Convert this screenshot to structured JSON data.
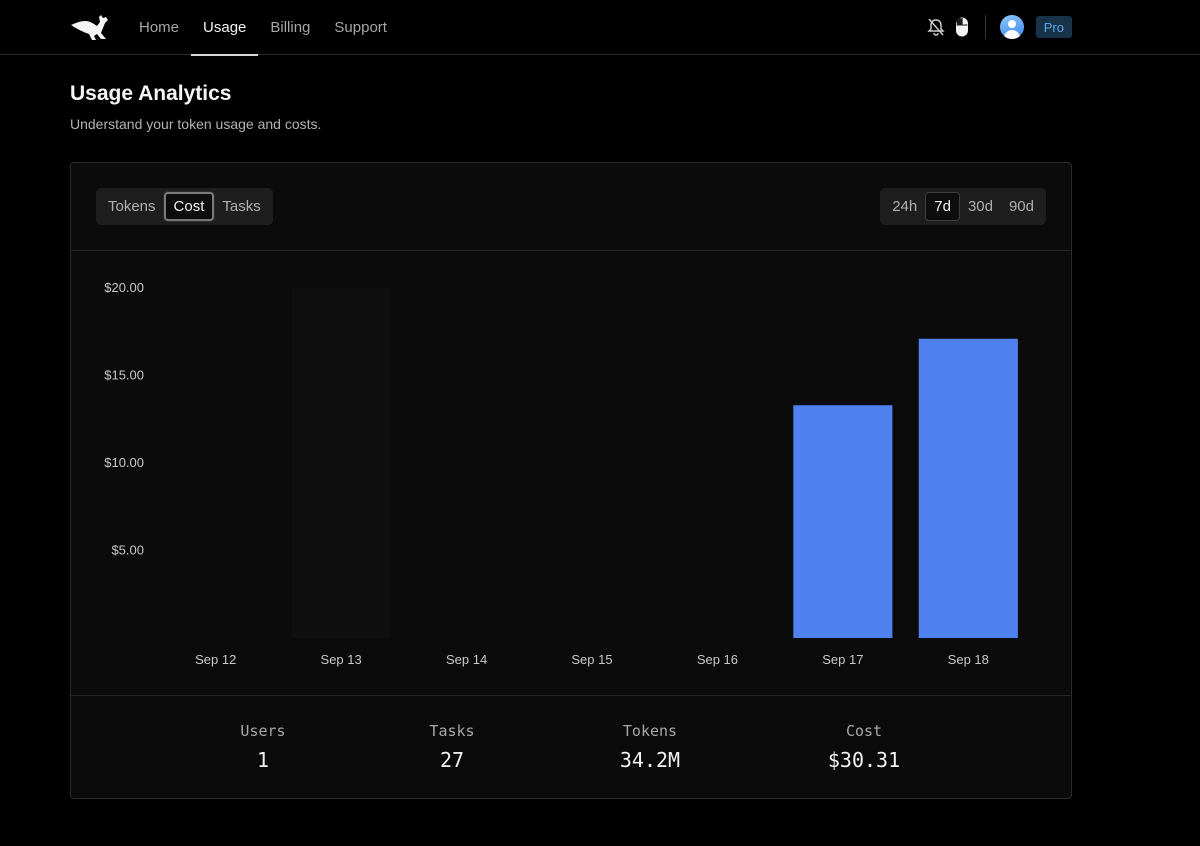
{
  "nav": {
    "items": [
      {
        "label": "Home",
        "active": false
      },
      {
        "label": "Usage",
        "active": true
      },
      {
        "label": "Billing",
        "active": false
      },
      {
        "label": "Support",
        "active": false
      }
    ],
    "icons": [
      "bell-off-icon",
      "mouse-icon"
    ],
    "plan_badge": "Pro"
  },
  "page": {
    "title": "Usage Analytics",
    "subtitle": "Understand your token usage and costs."
  },
  "metric_tabs": [
    {
      "label": "Tokens",
      "active": false
    },
    {
      "label": "Cost",
      "active": true
    },
    {
      "label": "Tasks",
      "active": false
    }
  ],
  "range_tabs": [
    {
      "label": "24h",
      "active": false
    },
    {
      "label": "7d",
      "active": true
    },
    {
      "label": "30d",
      "active": false
    },
    {
      "label": "90d",
      "active": false
    }
  ],
  "chart_data": {
    "type": "bar",
    "categories": [
      "Sep 12",
      "Sep 13",
      "Sep 14",
      "Sep 15",
      "Sep 16",
      "Sep 17",
      "Sep 18"
    ],
    "values": [
      0,
      0,
      0,
      0,
      0,
      13.3,
      17.1
    ],
    "yticks": [
      "$5.00",
      "$10.00",
      "$15.00",
      "$20.00"
    ],
    "ytick_values": [
      5,
      10,
      15,
      20
    ],
    "ylim": [
      0,
      20
    ],
    "bar_color": "#4f82ee",
    "hover_band_color": "#0f0f0f",
    "grid": false,
    "title": "",
    "xlabel": "",
    "ylabel": ""
  },
  "stats": [
    {
      "label": "Users",
      "value": "1"
    },
    {
      "label": "Tasks",
      "value": "27"
    },
    {
      "label": "Tokens",
      "value": "34.2M"
    },
    {
      "label": "Cost",
      "value": "$30.31"
    }
  ]
}
